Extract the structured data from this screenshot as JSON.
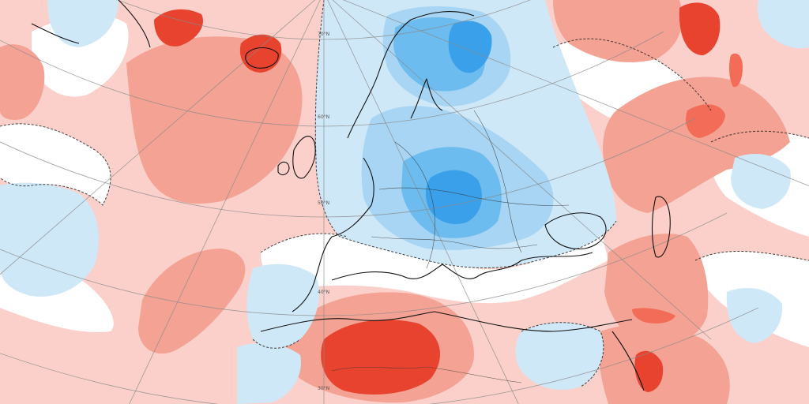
{
  "map": {
    "lat_labels": [
      "70°N",
      "60°N",
      "50°N",
      "40°N",
      "30°N"
    ],
    "colors": {
      "warm_1": "#fbd0ca",
      "warm_2": "#f4a293",
      "warm_3": "#f26c58",
      "warm_4": "#e8432e",
      "cool_1": "#cfe8f8",
      "cool_2": "#a7d5f3",
      "cool_3": "#6cbcef",
      "cool_4": "#3aa0ea",
      "neutral": "#ffffff"
    }
  }
}
